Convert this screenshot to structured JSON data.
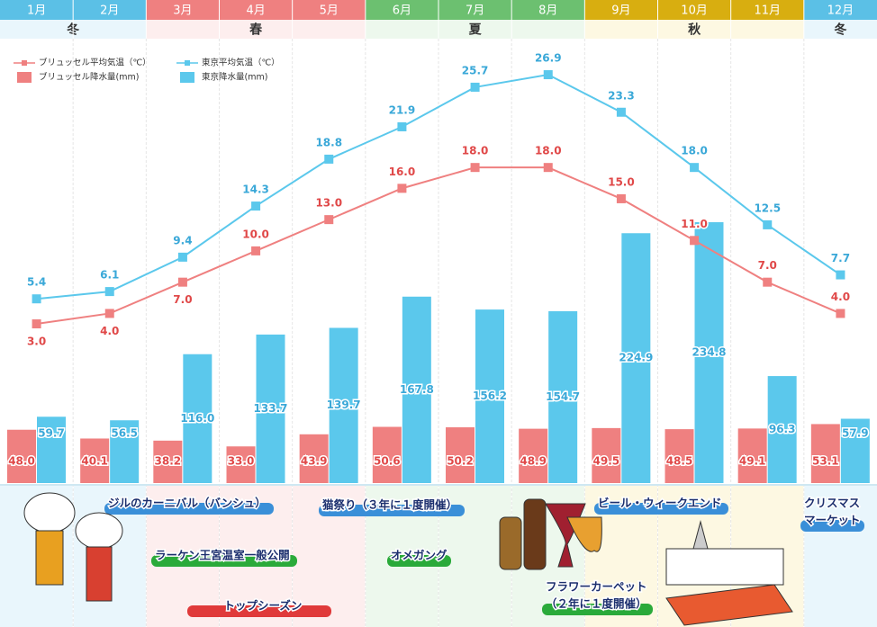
{
  "chart_data": {
    "type": "bar_line",
    "categories": [
      "1月",
      "2月",
      "3月",
      "4月",
      "5月",
      "6月",
      "7月",
      "8月",
      "9月",
      "10月",
      "11月",
      "12月"
    ],
    "seasons": [
      {
        "label": "冬",
        "count": 2,
        "color": "#5bc0e6",
        "tint": "#e9f6fc"
      },
      {
        "label": "春",
        "count": 3,
        "color": "#ef8080",
        "tint": "#fdeeee"
      },
      {
        "label": "夏",
        "count": 3,
        "color": "#6cc070",
        "tint": "#edf8ed"
      },
      {
        "label": "秋",
        "count": 3,
        "color": "#d8ae10",
        "tint": "#fdf8e2"
      },
      {
        "label": "冬",
        "count": 1,
        "color": "#5bc0e6",
        "tint": "#e9f6fc"
      }
    ],
    "series": [
      {
        "name": "ブリュッセル平均気温（℃）",
        "kind": "line",
        "color": "#ef8080",
        "values": [
          3.0,
          4.0,
          7.0,
          10.0,
          13.0,
          16.0,
          18.0,
          18.0,
          15.0,
          11.0,
          7.0,
          4.0
        ],
        "value_labels": [
          "3.0",
          "4.0",
          "7.0",
          "10.0",
          "13.0",
          "16.0",
          "18.0",
          "18.0",
          "15.0",
          "11.0",
          "7.0",
          "4.0"
        ]
      },
      {
        "name": "東京平均気温（℃）",
        "kind": "line",
        "color": "#5bc8ec",
        "values": [
          5.4,
          6.1,
          9.4,
          14.3,
          18.8,
          21.9,
          25.7,
          26.9,
          23.3,
          18.0,
          12.5,
          7.7
        ],
        "value_labels": [
          "5.4",
          "6.1",
          "9.4",
          "14.3",
          "18.8",
          "21.9",
          "25.7",
          "26.9",
          "23.3",
          "18.0",
          "12.5",
          "7.7"
        ]
      },
      {
        "name": "ブリュッセル降水量(mm)",
        "kind": "bar",
        "color": "#ef8080",
        "values": [
          48.0,
          40.1,
          38.2,
          33.0,
          43.9,
          50.6,
          50.2,
          48.9,
          49.5,
          48.5,
          49.1,
          53.1
        ],
        "value_labels": [
          "48.0",
          "40.1",
          "38.2",
          "33.0",
          "43.9",
          "50.6",
          "50.2",
          "48.9",
          "49.5",
          "48.5",
          "49.1",
          "53.1"
        ]
      },
      {
        "name": "東京降水量(mm)",
        "kind": "bar",
        "color": "#5bc8ec",
        "values": [
          59.7,
          56.5,
          116.0,
          133.7,
          139.7,
          167.8,
          156.2,
          154.7,
          224.9,
          234.8,
          96.3,
          57.9
        ],
        "value_labels": [
          "59.7",
          "56.5",
          "116.0",
          "133.7",
          "139.7",
          "167.8",
          "156.2",
          "154.7",
          "224.9",
          "234.8",
          "96.3",
          "57.9"
        ]
      }
    ],
    "events": [
      {
        "lines": [
          "ジルのカーニバル（バンシュ）"
        ],
        "color": "#3a8fd8"
      },
      {
        "lines": [
          "猫祭り（３年に１度開催）"
        ],
        "color": "#3a8fd8"
      },
      {
        "lines": [
          "ビール・ウィークエンド"
        ],
        "color": "#3a8fd8"
      },
      {
        "lines": [
          "クリスマス",
          "マーケット"
        ],
        "color": "#3a8fd8"
      },
      {
        "lines": [
          "ラーケン王宮温室一般公開"
        ],
        "color": "#2aaa3a"
      },
      {
        "lines": [
          "オメガング"
        ],
        "color": "#2aaa3a"
      },
      {
        "lines": [
          "トップシーズン"
        ],
        "color": "#e03a3a"
      },
      {
        "lines": [
          "フラワーカーペット",
          "（２年に１度開催）"
        ],
        "color": "#2aaa3a"
      }
    ]
  }
}
